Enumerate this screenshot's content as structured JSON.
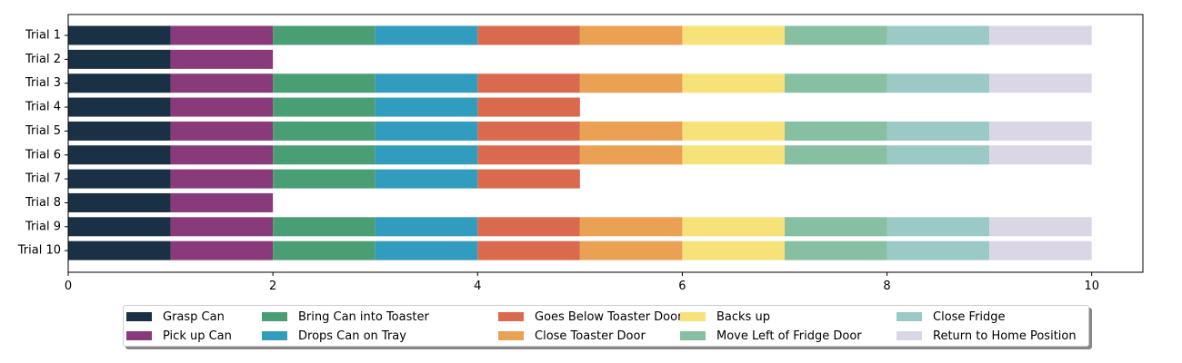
{
  "chart_data": {
    "type": "bar",
    "orientation": "horizontal-stacked",
    "categories": [
      "Trial 1",
      "Trial 2",
      "Trial 3",
      "Trial 4",
      "Trial 5",
      "Trial 6",
      "Trial 7",
      "Trial 8",
      "Trial 9",
      "Trial 10"
    ],
    "segment_duration": 1,
    "steps_completed": [
      10,
      2,
      10,
      5,
      10,
      10,
      5,
      2,
      10,
      10
    ],
    "series": [
      {
        "name": "Grasp Can",
        "color": "#1a3044"
      },
      {
        "name": "Pick up Can",
        "color": "#883a7a"
      },
      {
        "name": "Bring Can into Toaster",
        "color": "#4a9e73"
      },
      {
        "name": "Drops Can on Tray",
        "color": "#319cbd"
      },
      {
        "name": "Goes Below Toaster Door",
        "color": "#da6a4d"
      },
      {
        "name": "Close Toaster Door",
        "color": "#eba154"
      },
      {
        "name": "Backs up",
        "color": "#f7e27a"
      },
      {
        "name": "Move Left of Fridge Door",
        "color": "#86bfa2"
      },
      {
        "name": "Close Fridge",
        "color": "#9ac9c6"
      },
      {
        "name": "Return to Home Position",
        "color": "#dad6e6"
      }
    ],
    "xlim": [
      0,
      10.5
    ],
    "xticks": [
      0,
      2,
      4,
      6,
      8,
      10
    ],
    "grid": false,
    "legend": "bottom-center"
  }
}
